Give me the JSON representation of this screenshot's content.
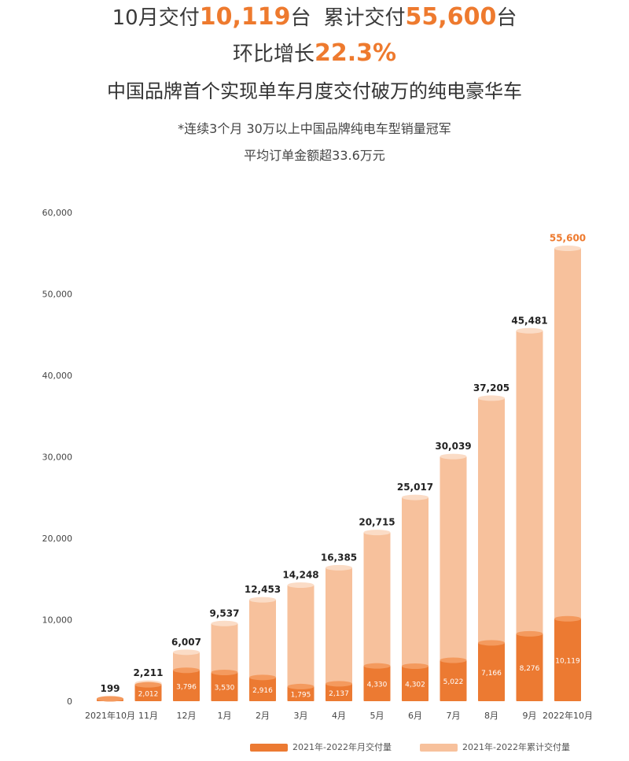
{
  "header": {
    "line1_prefix": "10月交付",
    "line1_value1": "10,119",
    "line1_mid1": "台",
    "line1_mid2": "累计交付",
    "line1_value2": "55,600",
    "line1_suffix": "台",
    "line2_prefix": "环比增长",
    "line2_value": "22.3%",
    "line3": "中国品牌首个实现单车月度交付破万的纯电豪华车",
    "line4": "*连续3个月 30万以上中国品牌纯电车型销量冠军",
    "line5": "平均订单金额超33.6万元"
  },
  "colors": {
    "accent": "#ee7a2e",
    "monthly": "#ec7a32",
    "cumulative": "#f7c19c"
  },
  "chart_data": {
    "type": "bar",
    "categories": [
      "2021年10月",
      "11月",
      "12月",
      "1月",
      "2月",
      "3月",
      "4月",
      "5月",
      "6月",
      "7月",
      "8月",
      "9月",
      "2022年10月"
    ],
    "series": [
      {
        "name": "2021年-2022年月交付量",
        "values": [
          199,
          2012,
          3796,
          3530,
          2916,
          1795,
          2137,
          4330,
          4302,
          5022,
          7166,
          8276,
          10119
        ],
        "labels": [
          "",
          "2,012",
          "3,796",
          "3,530",
          "2,916",
          "1,795",
          "2,137",
          "4,330",
          "4,302",
          "5,022",
          "7,166",
          "8,276",
          "10,119"
        ]
      },
      {
        "name": "2021年-2022年累计交付量",
        "values": [
          199,
          2211,
          6007,
          9537,
          12453,
          14248,
          16385,
          20715,
          25017,
          30039,
          37205,
          45481,
          55600
        ],
        "labels": [
          "199",
          "2,211",
          "6,007",
          "9,537",
          "12,453",
          "14,248",
          "16,385",
          "20,715",
          "25,017",
          "30,039",
          "37,205",
          "45,481",
          "55,600"
        ]
      }
    ],
    "yticks": [
      "0",
      "10,000",
      "20,000",
      "30,000",
      "40,000",
      "50,000",
      "60,000"
    ],
    "ylim": [
      0,
      60000
    ],
    "grid": false,
    "legend_position": "bottom"
  }
}
